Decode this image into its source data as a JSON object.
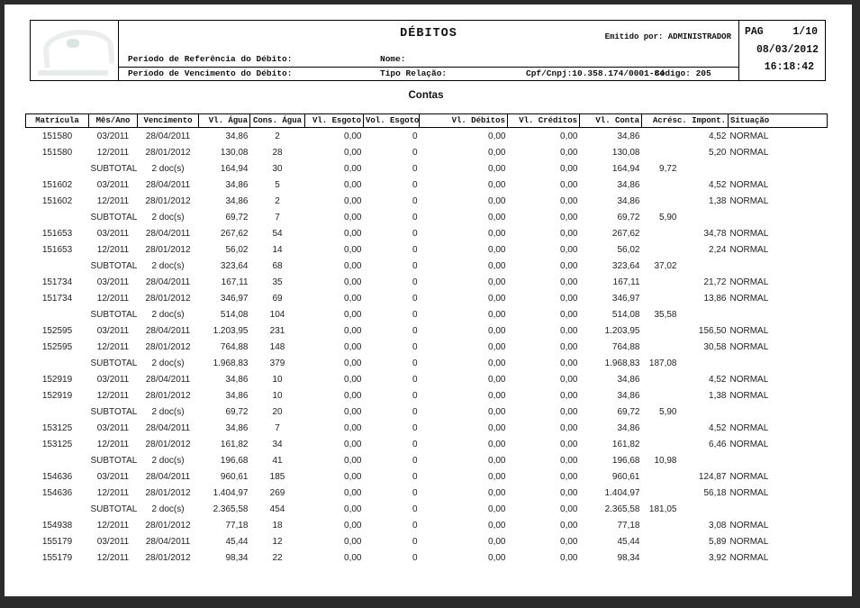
{
  "header": {
    "title": "DÉBITOS",
    "emitted_by": "Emitido por: ADMINISTRADOR",
    "ref_period_label": "Período de Referência do Débito:",
    "due_period_label": "Período de Vencimento do Débito:",
    "name_label": "Nome:",
    "relation_label": "Tipo Relação:",
    "cpf_cnpj": "Cpf/Cnpj:10.358.174/0001-84",
    "codigo": "Código: 205",
    "pag_label": "PAG",
    "page_number": "1/10",
    "date": "08/03/2012",
    "time": "16:18:42"
  },
  "contas": {
    "section_title": "Contas",
    "columns": [
      "Matrícula",
      "Mês/Ano",
      "Vencimento",
      "Vl. Água",
      "Cons. Água",
      "Vl. Esgoto",
      "Vol. Esgoto",
      "Vl. Débitos",
      "Vl. Créditos",
      "Vl. Conta",
      "Acrésc. Impont.",
      "Situação"
    ],
    "rows": [
      [
        "151580",
        "03/2011",
        "28/04/2011",
        "34,86",
        "2",
        "0,00",
        "0",
        "0,00",
        "0,00",
        "34,86",
        "4,52",
        "NORMAL"
      ],
      [
        "151580",
        "12/2011",
        "28/01/2012",
        "130,08",
        "28",
        "0,00",
        "0",
        "0,00",
        "0,00",
        "130,08",
        "5,20",
        "NORMAL"
      ],
      [
        "",
        "SUBTOTAL",
        "2 doc(s)",
        "164,94",
        "30",
        "0,00",
        "0",
        "0,00",
        "0,00",
        "164,94",
        "9,72",
        ""
      ],
      [
        "151602",
        "03/2011",
        "28/04/2011",
        "34,86",
        "5",
        "0,00",
        "0",
        "0,00",
        "0,00",
        "34,86",
        "4,52",
        "NORMAL"
      ],
      [
        "151602",
        "12/2011",
        "28/01/2012",
        "34,86",
        "2",
        "0,00",
        "0",
        "0,00",
        "0,00",
        "34,86",
        "1,38",
        "NORMAL"
      ],
      [
        "",
        "SUBTOTAL",
        "2 doc(s)",
        "69,72",
        "7",
        "0,00",
        "0",
        "0,00",
        "0,00",
        "69,72",
        "5,90",
        ""
      ],
      [
        "151653",
        "03/2011",
        "28/04/2011",
        "267,62",
        "54",
        "0,00",
        "0",
        "0,00",
        "0,00",
        "267,62",
        "34,78",
        "NORMAL"
      ],
      [
        "151653",
        "12/2011",
        "28/01/2012",
        "56,02",
        "14",
        "0,00",
        "0",
        "0,00",
        "0,00",
        "56,02",
        "2,24",
        "NORMAL"
      ],
      [
        "",
        "SUBTOTAL",
        "2 doc(s)",
        "323,64",
        "68",
        "0,00",
        "0",
        "0,00",
        "0,00",
        "323,64",
        "37,02",
        ""
      ],
      [
        "151734",
        "03/2011",
        "28/04/2011",
        "167,11",
        "35",
        "0,00",
        "0",
        "0,00",
        "0,00",
        "167,11",
        "21,72",
        "NORMAL"
      ],
      [
        "151734",
        "12/2011",
        "28/01/2012",
        "346,97",
        "69",
        "0,00",
        "0",
        "0,00",
        "0,00",
        "346,97",
        "13,86",
        "NORMAL"
      ],
      [
        "",
        "SUBTOTAL",
        "2 doc(s)",
        "514,08",
        "104",
        "0,00",
        "0",
        "0,00",
        "0,00",
        "514,08",
        "35,58",
        ""
      ],
      [
        "152595",
        "03/2011",
        "28/04/2011",
        "1.203,95",
        "231",
        "0,00",
        "0",
        "0,00",
        "0,00",
        "1.203,95",
        "156,50",
        "NORMAL"
      ],
      [
        "152595",
        "12/2011",
        "28/01/2012",
        "764,88",
        "148",
        "0,00",
        "0",
        "0,00",
        "0,00",
        "764,88",
        "30,58",
        "NORMAL"
      ],
      [
        "",
        "SUBTOTAL",
        "2 doc(s)",
        "1.968,83",
        "379",
        "0,00",
        "0",
        "0,00",
        "0,00",
        "1.968,83",
        "187,08",
        ""
      ],
      [
        "152919",
        "03/2011",
        "28/04/2011",
        "34,86",
        "10",
        "0,00",
        "0",
        "0,00",
        "0,00",
        "34,86",
        "4,52",
        "NORMAL"
      ],
      [
        "152919",
        "12/2011",
        "28/01/2012",
        "34,86",
        "10",
        "0,00",
        "0",
        "0,00",
        "0,00",
        "34,86",
        "1,38",
        "NORMAL"
      ],
      [
        "",
        "SUBTOTAL",
        "2 doc(s)",
        "69,72",
        "20",
        "0,00",
        "0",
        "0,00",
        "0,00",
        "69,72",
        "5,90",
        ""
      ],
      [
        "153125",
        "03/2011",
        "28/04/2011",
        "34,86",
        "7",
        "0,00",
        "0",
        "0,00",
        "0,00",
        "34,86",
        "4,52",
        "NORMAL"
      ],
      [
        "153125",
        "12/2011",
        "28/01/2012",
        "161,82",
        "34",
        "0,00",
        "0",
        "0,00",
        "0,00",
        "161,82",
        "6,46",
        "NORMAL"
      ],
      [
        "",
        "SUBTOTAL",
        "2 doc(s)",
        "196,68",
        "41",
        "0,00",
        "0",
        "0,00",
        "0,00",
        "196,68",
        "10,98",
        ""
      ],
      [
        "154636",
        "03/2011",
        "28/04/2011",
        "960,61",
        "185",
        "0,00",
        "0",
        "0,00",
        "0,00",
        "960,61",
        "124,87",
        "NORMAL"
      ],
      [
        "154636",
        "12/2011",
        "28/01/2012",
        "1.404,97",
        "269",
        "0,00",
        "0",
        "0,00",
        "0,00",
        "1.404,97",
        "56,18",
        "NORMAL"
      ],
      [
        "",
        "SUBTOTAL",
        "2 doc(s)",
        "2.365,58",
        "454",
        "0,00",
        "0",
        "0,00",
        "0,00",
        "2.365,58",
        "181,05",
        ""
      ],
      [
        "154938",
        "12/2011",
        "28/01/2012",
        "77,18",
        "18",
        "0,00",
        "0",
        "0,00",
        "0,00",
        "77,18",
        "3,08",
        "NORMAL"
      ],
      [
        "155179",
        "03/2011",
        "28/04/2011",
        "45,44",
        "12",
        "0,00",
        "0",
        "0,00",
        "0,00",
        "45,44",
        "5,89",
        "NORMAL"
      ],
      [
        "155179",
        "12/2011",
        "28/01/2012",
        "98,34",
        "22",
        "0,00",
        "0",
        "0,00",
        "0,00",
        "98,34",
        "3,92",
        "NORMAL"
      ]
    ]
  }
}
